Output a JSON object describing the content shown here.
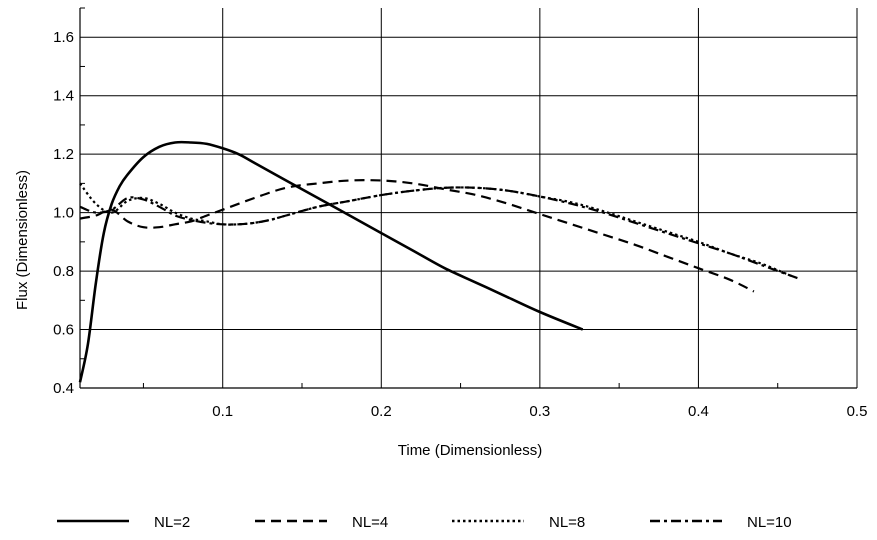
{
  "chart_data": {
    "type": "line",
    "title": "",
    "xlabel": "Time (Dimensionless)",
    "ylabel": "Flux (Dimensionless)",
    "xlim": [
      0.01,
      0.5
    ],
    "ylim": [
      0.4,
      1.7
    ],
    "x_ticks": [
      0.1,
      0.2,
      0.3,
      0.4,
      0.5
    ],
    "y_ticks": [
      0.4,
      0.6,
      0.8,
      1.0,
      1.2,
      1.4,
      1.6
    ],
    "x_tick_labels": [
      "0.1",
      "0.2",
      "0.3",
      "0.4",
      "0.5"
    ],
    "y_tick_labels": [
      "0.4",
      "0.6",
      "0.8",
      "1.0",
      "1.2",
      "1.4",
      "1.6"
    ],
    "grid": true,
    "legend_position": "bottom",
    "series": [
      {
        "name": "NL=2",
        "style": "solid",
        "x": [
          0.01,
          0.015,
          0.02,
          0.025,
          0.03,
          0.035,
          0.04,
          0.05,
          0.06,
          0.07,
          0.08,
          0.09,
          0.1,
          0.11,
          0.12,
          0.14,
          0.16,
          0.18,
          0.2,
          0.22,
          0.24,
          0.26,
          0.28,
          0.3,
          0.327
        ],
        "y": [
          0.42,
          0.55,
          0.76,
          0.93,
          1.03,
          1.09,
          1.13,
          1.19,
          1.225,
          1.24,
          1.24,
          1.235,
          1.22,
          1.2,
          1.17,
          1.11,
          1.05,
          0.99,
          0.93,
          0.87,
          0.81,
          0.76,
          0.71,
          0.66,
          0.6
        ]
      },
      {
        "name": "NL=4",
        "style": "dashed",
        "x": [
          0.01,
          0.02,
          0.03,
          0.04,
          0.05,
          0.06,
          0.07,
          0.08,
          0.09,
          0.1,
          0.12,
          0.14,
          0.16,
          0.18,
          0.2,
          0.22,
          0.24,
          0.26,
          0.28,
          0.3,
          0.32,
          0.34,
          0.36,
          0.38,
          0.4,
          0.42,
          0.435
        ],
        "y": [
          0.98,
          0.99,
          1.01,
          0.97,
          0.95,
          0.95,
          0.96,
          0.97,
          0.99,
          1.01,
          1.05,
          1.085,
          1.1,
          1.11,
          1.11,
          1.1,
          1.08,
          1.06,
          1.03,
          0.995,
          0.96,
          0.925,
          0.89,
          0.85,
          0.81,
          0.77,
          0.73
        ]
      },
      {
        "name": "NL=8",
        "style": "dotted",
        "x": [
          0.01,
          0.02,
          0.03,
          0.04,
          0.05,
          0.06,
          0.07,
          0.08,
          0.09,
          0.1,
          0.11,
          0.12,
          0.13,
          0.14,
          0.16,
          0.18,
          0.2,
          0.22,
          0.24,
          0.26,
          0.28,
          0.3,
          0.32,
          0.34,
          0.36,
          0.38,
          0.4,
          0.42,
          0.44,
          0.46
        ],
        "y": [
          1.1,
          1.03,
          1.0,
          1.04,
          1.05,
          1.03,
          1.0,
          0.98,
          0.97,
          0.96,
          0.96,
          0.965,
          0.975,
          0.99,
          1.02,
          1.04,
          1.06,
          1.075,
          1.085,
          1.085,
          1.075,
          1.055,
          1.035,
          1.005,
          0.97,
          0.935,
          0.9,
          0.86,
          0.825,
          0.78
        ]
      },
      {
        "name": "NL=10",
        "style": "dashdot",
        "x": [
          0.01,
          0.02,
          0.03,
          0.04,
          0.05,
          0.06,
          0.07,
          0.08,
          0.09,
          0.1,
          0.11,
          0.12,
          0.13,
          0.14,
          0.16,
          0.18,
          0.2,
          0.22,
          0.24,
          0.26,
          0.28,
          0.3,
          0.32,
          0.34,
          0.36,
          0.38,
          0.4,
          0.42,
          0.44,
          0.463
        ],
        "y": [
          1.02,
          1.0,
          1.01,
          1.05,
          1.045,
          1.02,
          0.99,
          0.975,
          0.965,
          0.96,
          0.96,
          0.965,
          0.975,
          0.99,
          1.02,
          1.04,
          1.06,
          1.075,
          1.085,
          1.085,
          1.075,
          1.055,
          1.03,
          1.0,
          0.965,
          0.93,
          0.895,
          0.86,
          0.82,
          0.775
        ]
      }
    ]
  }
}
